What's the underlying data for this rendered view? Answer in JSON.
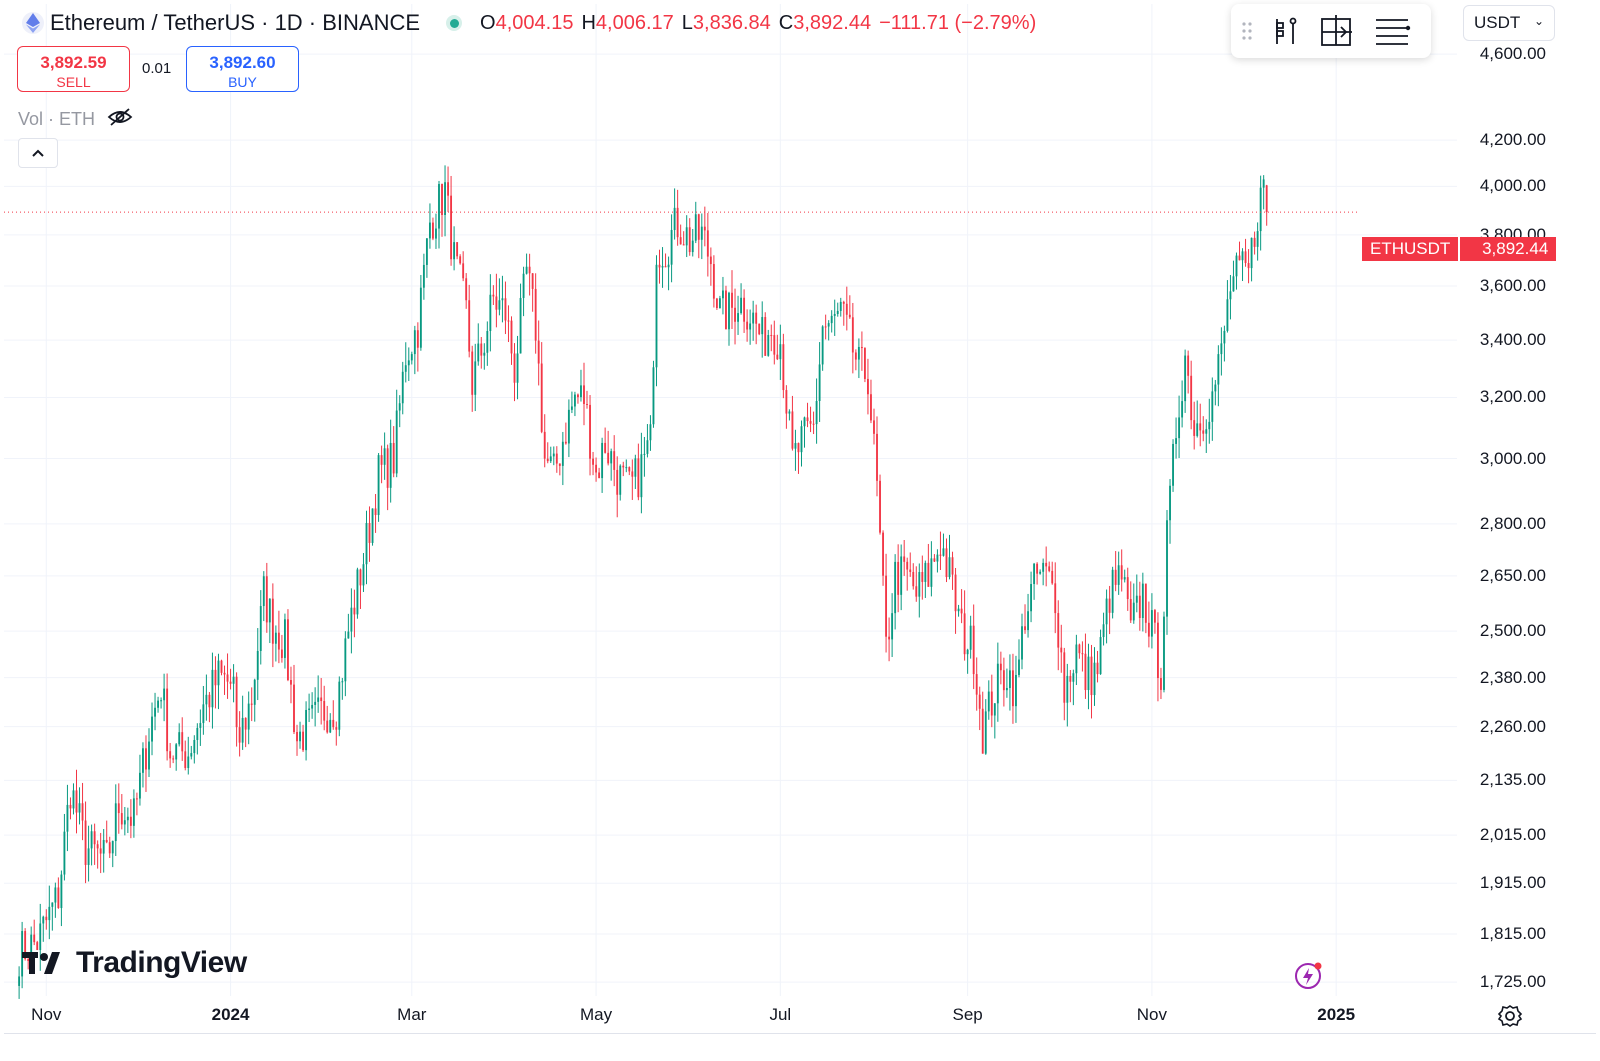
{
  "header": {
    "title": "Ethereum / TetherUS · 1D · BINANCE",
    "ohlc": [
      {
        "key": "O",
        "value": "4,004.15"
      },
      {
        "key": "H",
        "value": "4,006.17"
      },
      {
        "key": "L",
        "value": "3,836.84"
      },
      {
        "key": "C",
        "value": "3,892.44"
      },
      {
        "key": "",
        "value": "−111.71 (−2.79%)"
      }
    ]
  },
  "trade": {
    "sell_price": "3,892.59",
    "sell_label": "SELL",
    "spread": "0.01",
    "buy_price": "3,892.60",
    "buy_label": "BUY"
  },
  "volume_indicator": {
    "label": "Vol · ETH"
  },
  "currency_selector": {
    "value": "USDT"
  },
  "last_price_label": {
    "symbol": "ETHUSDT",
    "value": "3,892.44"
  },
  "watermark": {
    "text": "TradingView"
  },
  "colors": {
    "up": "#089981",
    "down": "#f23645",
    "grid": "#f0f3fa",
    "price_line": "#f23645"
  },
  "chart_data": {
    "type": "candlestick",
    "title": "Ethereum / TetherUS · 1D · BINANCE",
    "scale": "log",
    "ylim": [
      1700,
      4850
    ],
    "y_ticks": [
      {
        "value": 4600,
        "label": "4,600.00"
      },
      {
        "value": 4200,
        "label": "4,200.00"
      },
      {
        "value": 4000,
        "label": "4,000.00"
      },
      {
        "value": 3800,
        "label": "3,800.00"
      },
      {
        "value": 3600,
        "label": "3,600.00"
      },
      {
        "value": 3400,
        "label": "3,400.00"
      },
      {
        "value": 3200,
        "label": "3,200.00"
      },
      {
        "value": 3000,
        "label": "3,000.00"
      },
      {
        "value": 2800,
        "label": "2,800.00"
      },
      {
        "value": 2650,
        "label": "2,650.00"
      },
      {
        "value": 2500,
        "label": "2,500.00"
      },
      {
        "value": 2380,
        "label": "2,380.00"
      },
      {
        "value": 2260,
        "label": "2,260.00"
      },
      {
        "value": 2135,
        "label": "2,135.00"
      },
      {
        "value": 2015,
        "label": "2,015.00"
      },
      {
        "value": 1915,
        "label": "1,915.00"
      },
      {
        "value": 1815,
        "label": "1,815.00"
      },
      {
        "value": 1725,
        "label": "1,725.00"
      }
    ],
    "x_ticks": [
      {
        "date": "2023-11-01",
        "label": "Nov",
        "bold": false
      },
      {
        "date": "2024-01-01",
        "label": "2024",
        "bold": true
      },
      {
        "date": "2024-03-01",
        "label": "Mar",
        "bold": false
      },
      {
        "date": "2024-05-01",
        "label": "May",
        "bold": false
      },
      {
        "date": "2024-07-01",
        "label": "Jul",
        "bold": false
      },
      {
        "date": "2024-09-01",
        "label": "Sep",
        "bold": false
      },
      {
        "date": "2024-11-01",
        "label": "Nov",
        "bold": false
      },
      {
        "date": "2025-01-01",
        "label": "2025",
        "bold": true
      }
    ],
    "x_range": [
      "2023-10-18",
      "2025-02-10"
    ],
    "last_close": 3892.44,
    "series": [
      {
        "name": "ETHUSDT daily close (approx.)",
        "anchors": [
          [
            "2023-10-23",
            1780
          ],
          [
            "2023-10-29",
            1800
          ],
          [
            "2023-11-05",
            1890
          ],
          [
            "2023-11-09",
            2120
          ],
          [
            "2023-11-14",
            1990
          ],
          [
            "2023-11-21",
            1960
          ],
          [
            "2023-11-25",
            2080
          ],
          [
            "2023-11-30",
            2050
          ],
          [
            "2023-12-05",
            2250
          ],
          [
            "2023-12-09",
            2360
          ],
          [
            "2023-12-12",
            2200
          ],
          [
            "2023-12-18",
            2200
          ],
          [
            "2023-12-23",
            2310
          ],
          [
            "2023-12-28",
            2380
          ],
          [
            "2024-01-02",
            2360
          ],
          [
            "2024-01-03",
            2210
          ],
          [
            "2024-01-08",
            2330
          ],
          [
            "2024-01-12",
            2600
          ],
          [
            "2024-01-15",
            2520
          ],
          [
            "2024-01-19",
            2470
          ],
          [
            "2024-01-23",
            2230
          ],
          [
            "2024-01-27",
            2260
          ],
          [
            "2024-02-01",
            2300
          ],
          [
            "2024-02-05",
            2310
          ],
          [
            "2024-02-09",
            2500
          ],
          [
            "2024-02-14",
            2700
          ],
          [
            "2024-02-19",
            2950
          ],
          [
            "2024-02-24",
            3000
          ],
          [
            "2024-02-28",
            3350
          ],
          [
            "2024-03-03",
            3450
          ],
          [
            "2024-03-07",
            3850
          ],
          [
            "2024-03-12",
            3980
          ],
          [
            "2024-03-15",
            3700
          ],
          [
            "2024-03-19",
            3500
          ],
          [
            "2024-03-21",
            3250
          ],
          [
            "2024-03-25",
            3400
          ],
          [
            "2024-03-28",
            3550
          ],
          [
            "2024-04-01",
            3500
          ],
          [
            "2024-04-04",
            3300
          ],
          [
            "2024-04-08",
            3650
          ],
          [
            "2024-04-11",
            3450
          ],
          [
            "2024-04-14",
            3000
          ],
          [
            "2024-04-17",
            2950
          ],
          [
            "2024-04-21",
            3100
          ],
          [
            "2024-04-24",
            3200
          ],
          [
            "2024-04-27",
            3200
          ],
          [
            "2024-05-01",
            2950
          ],
          [
            "2024-05-04",
            3050
          ],
          [
            "2024-05-08",
            2950
          ],
          [
            "2024-05-12",
            2900
          ],
          [
            "2024-05-15",
            2950
          ],
          [
            "2024-05-19",
            3050
          ],
          [
            "2024-05-21",
            3750
          ],
          [
            "2024-05-24",
            3750
          ],
          [
            "2024-05-28",
            3850
          ],
          [
            "2024-06-01",
            3780
          ],
          [
            "2024-06-05",
            3800
          ],
          [
            "2024-06-08",
            3700
          ],
          [
            "2024-06-11",
            3500
          ],
          [
            "2024-06-14",
            3500
          ],
          [
            "2024-06-17",
            3550
          ],
          [
            "2024-06-21",
            3500
          ],
          [
            "2024-06-25",
            3400
          ],
          [
            "2024-06-28",
            3450
          ],
          [
            "2024-07-01",
            3400
          ],
          [
            "2024-07-05",
            2990
          ],
          [
            "2024-07-08",
            3050
          ],
          [
            "2024-07-12",
            3100
          ],
          [
            "2024-07-15",
            3450
          ],
          [
            "2024-07-18",
            3450
          ],
          [
            "2024-07-21",
            3500
          ],
          [
            "2024-07-24",
            3400
          ],
          [
            "2024-07-27",
            3300
          ],
          [
            "2024-07-30",
            3280
          ],
          [
            "2024-08-02",
            2900
          ],
          [
            "2024-08-05",
            2450
          ],
          [
            "2024-08-08",
            2650
          ],
          [
            "2024-08-12",
            2650
          ],
          [
            "2024-08-15",
            2600
          ],
          [
            "2024-08-19",
            2650
          ],
          [
            "2024-08-23",
            2750
          ],
          [
            "2024-08-26",
            2650
          ],
          [
            "2024-08-30",
            2500
          ],
          [
            "2024-09-03",
            2450
          ],
          [
            "2024-09-06",
            2250
          ],
          [
            "2024-09-10",
            2350
          ],
          [
            "2024-09-14",
            2400
          ],
          [
            "2024-09-17",
            2350
          ],
          [
            "2024-09-20",
            2550
          ],
          [
            "2024-09-24",
            2650
          ],
          [
            "2024-09-27",
            2650
          ],
          [
            "2024-09-30",
            2600
          ],
          [
            "2024-10-03",
            2350
          ],
          [
            "2024-10-07",
            2450
          ],
          [
            "2024-10-10",
            2380
          ],
          [
            "2024-10-14",
            2400
          ],
          [
            "2024-10-18",
            2600
          ],
          [
            "2024-10-22",
            2650
          ],
          [
            "2024-10-25",
            2500
          ],
          [
            "2024-10-29",
            2600
          ],
          [
            "2024-11-01",
            2500
          ],
          [
            "2024-11-04",
            2400
          ],
          [
            "2024-11-06",
            2750
          ],
          [
            "2024-11-09",
            3100
          ],
          [
            "2024-11-12",
            3350
          ],
          [
            "2024-11-15",
            3100
          ],
          [
            "2024-11-18",
            3150
          ],
          [
            "2024-11-21",
            3200
          ],
          [
            "2024-11-24",
            3350
          ],
          [
            "2024-11-27",
            3600
          ],
          [
            "2024-11-30",
            3650
          ],
          [
            "2024-12-03",
            3650
          ],
          [
            "2024-12-06",
            3900
          ],
          [
            "2024-12-08",
            4000
          ],
          [
            "2024-12-09",
            3892.44
          ]
        ]
      }
    ]
  }
}
